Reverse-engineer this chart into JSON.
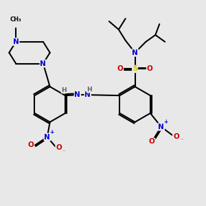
{
  "bg_color": "#e8e8e8",
  "bond_color": "#000000",
  "bond_width": 1.5,
  "figsize": [
    3.0,
    3.0
  ],
  "dpi": 100,
  "atom_colors": {
    "N": "#0000cc",
    "O": "#cc0000",
    "S": "#cccc00",
    "H": "#606060",
    "C": "#000000"
  }
}
